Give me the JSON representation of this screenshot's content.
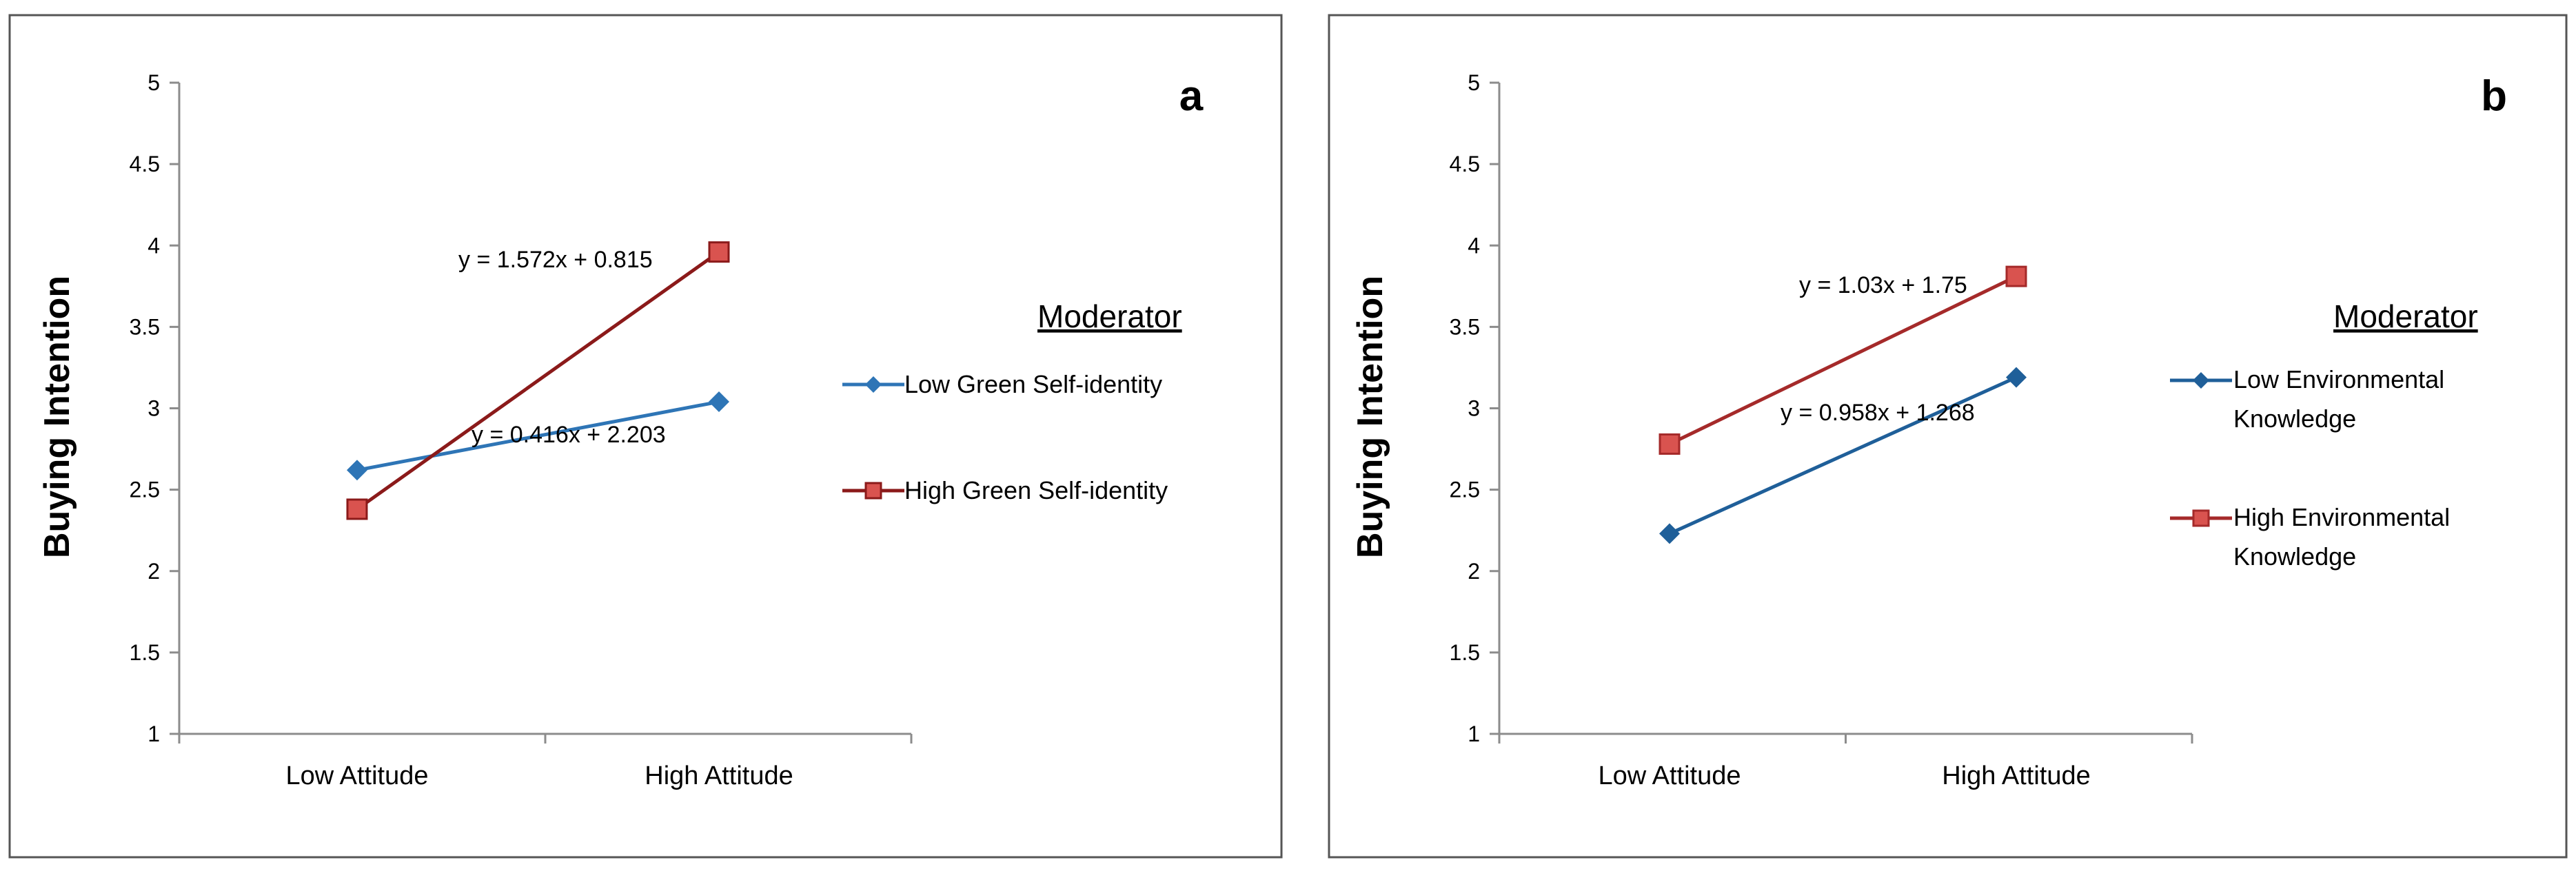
{
  "chart_data": [
    {
      "type": "line",
      "panel_label": "a",
      "title": "",
      "xlabel": "",
      "ylabel": "Buying Intention",
      "categories": [
        "Low Attitude",
        "High Attitude"
      ],
      "y_ticks": [
        "1",
        "1.5",
        "2",
        "2.5",
        "3",
        "3.5",
        "4",
        "4.5",
        "5"
      ],
      "ylim": [
        1,
        5
      ],
      "grid": false,
      "legend_title": "Moderator",
      "legend_position": "right",
      "series": [
        {
          "name": "Low Green Self-identity",
          "values": [
            2.62,
            3.04
          ],
          "color": "#2E75B6",
          "marker": "diamond",
          "trendline_label": "y = 0.416x + 2.203"
        },
        {
          "name": "High Green Self-identity",
          "values": [
            2.38,
            3.96
          ],
          "color": "#8B1A1A",
          "marker": "square",
          "marker_fill": "#D9534F",
          "trendline_label": "y = 1.572x + 0.815"
        }
      ]
    },
    {
      "type": "line",
      "panel_label": "b",
      "title": "",
      "xlabel": "",
      "ylabel": "Buying Intention",
      "categories": [
        "Low Attitude",
        "High Attitude"
      ],
      "y_ticks": [
        "1",
        "1.5",
        "2",
        "2.5",
        "3",
        "3.5",
        "4",
        "4.5",
        "5"
      ],
      "ylim": [
        1,
        5
      ],
      "grid": false,
      "legend_title": "Moderator",
      "legend_position": "right",
      "series": [
        {
          "name_lines": [
            "Low Environmental",
            "Knowledge"
          ],
          "values": [
            2.23,
            3.19
          ],
          "color": "#1F5F99",
          "marker": "diamond",
          "trendline_label": "y = 0.958x + 1.268"
        },
        {
          "name_lines": [
            "High Environmental",
            "Knowledge"
          ],
          "values": [
            2.78,
            3.81
          ],
          "color": "#A52A2A",
          "marker": "square",
          "marker_fill": "#D9534F",
          "trendline_label": "y = 1.03x + 1.75"
        }
      ]
    }
  ]
}
